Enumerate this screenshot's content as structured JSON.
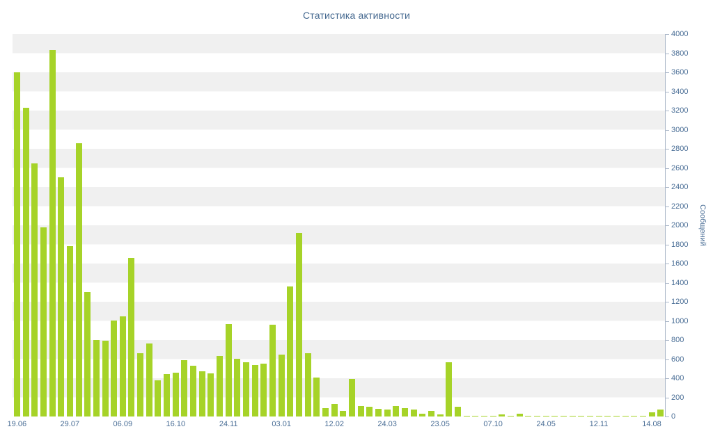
{
  "title": "Статистика активности",
  "colors": {
    "bar": "#a6d328",
    "axis_line": "#aab6c8",
    "label_text": "#4a6e96",
    "title_text": "#44688f",
    "band_a": "#f0f0f0",
    "band_b": "#ffffff"
  },
  "chart_data": {
    "type": "bar",
    "title": "Статистика активности",
    "xlabel": "",
    "ylabel": "Сообщений",
    "ylim": [
      0,
      4000
    ],
    "y_tick_step": 200,
    "legend": "none",
    "grid": "alternating-horizontal-bands",
    "x_tick_labels": [
      "19.06",
      "29.07",
      "06.09",
      "16.10",
      "24.11",
      "03.01",
      "12.02",
      "24.03",
      "23.05",
      "07.10",
      "24.05",
      "12.11",
      "14.08"
    ],
    "x_tick_every": 6,
    "values": [
      3600,
      3230,
      2650,
      1980,
      3830,
      2500,
      1780,
      2860,
      1300,
      800,
      790,
      1000,
      1050,
      1660,
      660,
      760,
      380,
      440,
      460,
      590,
      530,
      470,
      450,
      630,
      970,
      600,
      570,
      540,
      550,
      960,
      650,
      1360,
      1920,
      660,
      410,
      90,
      130,
      60,
      390,
      110,
      100,
      80,
      70,
      110,
      90,
      70,
      30,
      60,
      20,
      570,
      100,
      10,
      10,
      5,
      10,
      20,
      5,
      30,
      5,
      5,
      5,
      10,
      5,
      5,
      10,
      5,
      5,
      5,
      5,
      5,
      5,
      5,
      40,
      70
    ]
  }
}
